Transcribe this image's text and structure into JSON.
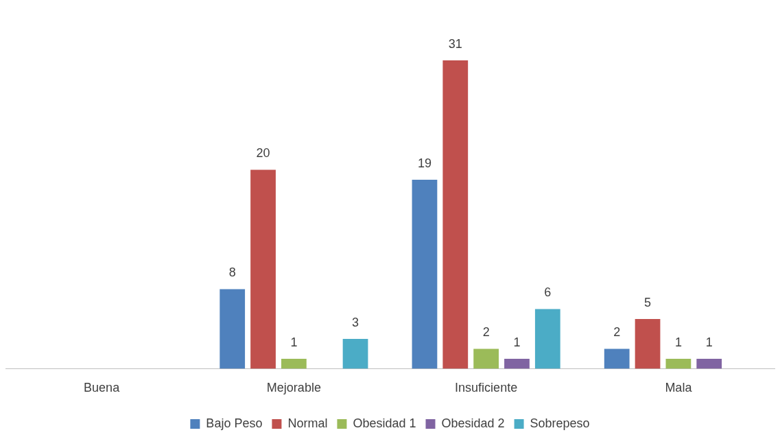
{
  "chart_data": {
    "type": "bar",
    "categories": [
      "Buena",
      "Mejorable",
      "Insuficiente",
      "Mala"
    ],
    "series": [
      {
        "name": "Bajo Peso",
        "color": "#4f81bd",
        "values": [
          null,
          8,
          19,
          2
        ]
      },
      {
        "name": "Normal",
        "color": "#c0504d",
        "values": [
          null,
          20,
          31,
          5
        ]
      },
      {
        "name": "Obesidad 1",
        "color": "#9bbb59",
        "values": [
          null,
          1,
          2,
          1
        ]
      },
      {
        "name": "Obesidad 2",
        "color": "#8064a2",
        "values": [
          null,
          null,
          1,
          1
        ]
      },
      {
        "name": "Sobrepeso",
        "color": "#4bacc6",
        "values": [
          null,
          3,
          6,
          null
        ]
      }
    ],
    "tick_labels": "x",
    "grid": false,
    "legend": "bottom",
    "data_labels": true
  }
}
